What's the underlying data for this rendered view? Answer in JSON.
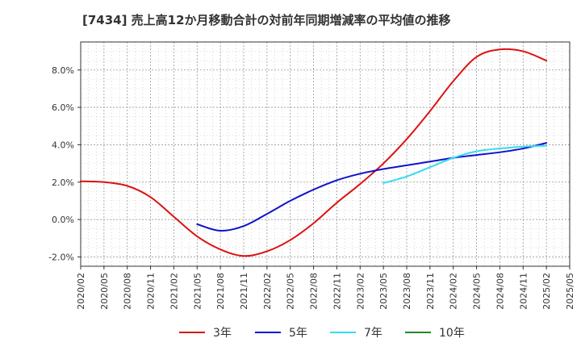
{
  "chart_data": {
    "type": "line",
    "title": "[7434]  売上高12か月移動合計の対前年同期増減率の平均値の推移",
    "xlabel": "",
    "ylabel": "",
    "ylim": [
      -2.5,
      9.5
    ],
    "y_ticks": [
      "8.0%",
      "6.0%",
      "4.0%",
      "2.0%",
      "0.0%",
      "-2.0%"
    ],
    "y_tick_values": [
      8,
      6,
      4,
      2,
      0,
      -2
    ],
    "x_ticks": [
      "2020/02",
      "2020/05",
      "2020/08",
      "2020/11",
      "2021/02",
      "2021/05",
      "2021/08",
      "2021/11",
      "2022/02",
      "2022/05",
      "2022/08",
      "2022/11",
      "2023/02",
      "2023/05",
      "2023/08",
      "2023/11",
      "2024/02",
      "2024/05",
      "2024/08",
      "2024/11",
      "2025/02",
      "2025/05"
    ],
    "grid": true,
    "legend_position": "bottom",
    "colors": {
      "3年": "#dd1111",
      "5年": "#1111cc",
      "7年": "#33ddee",
      "10年": "#228822"
    },
    "series": [
      {
        "name": "3年",
        "color": "#dd1111",
        "x": [
          "2020/02",
          "2020/05",
          "2020/08",
          "2020/11",
          "2021/02",
          "2021/05",
          "2021/08",
          "2021/11",
          "2022/02",
          "2022/05",
          "2022/08",
          "2022/11",
          "2023/02",
          "2023/05",
          "2023/08",
          "2023/11",
          "2024/02",
          "2024/05",
          "2024/08",
          "2024/11",
          "2025/02"
        ],
        "values": [
          2.05,
          2.0,
          1.8,
          1.2,
          0.15,
          -0.9,
          -1.6,
          -1.95,
          -1.7,
          -1.1,
          -0.2,
          0.9,
          1.9,
          3.0,
          4.3,
          5.8,
          7.4,
          8.7,
          9.1,
          9.0,
          8.5
        ]
      },
      {
        "name": "5年",
        "color": "#1111cc",
        "x": [
          "2021/05",
          "2021/08",
          "2021/11",
          "2022/02",
          "2022/05",
          "2022/08",
          "2022/11",
          "2023/02",
          "2023/05",
          "2023/08",
          "2023/11",
          "2024/02",
          "2024/05",
          "2024/08",
          "2024/11",
          "2025/02"
        ],
        "values": [
          -0.25,
          -0.6,
          -0.35,
          0.3,
          1.0,
          1.6,
          2.1,
          2.45,
          2.7,
          2.9,
          3.1,
          3.3,
          3.45,
          3.6,
          3.8,
          4.1
        ]
      },
      {
        "name": "7年",
        "color": "#33ddee",
        "x": [
          "2023/05",
          "2023/08",
          "2023/11",
          "2024/02",
          "2024/05",
          "2024/08",
          "2024/11",
          "2025/02"
        ],
        "values": [
          1.95,
          2.3,
          2.8,
          3.3,
          3.65,
          3.8,
          3.9,
          3.95
        ]
      },
      {
        "name": "10年",
        "color": "#228822",
        "x": [],
        "values": []
      }
    ]
  }
}
